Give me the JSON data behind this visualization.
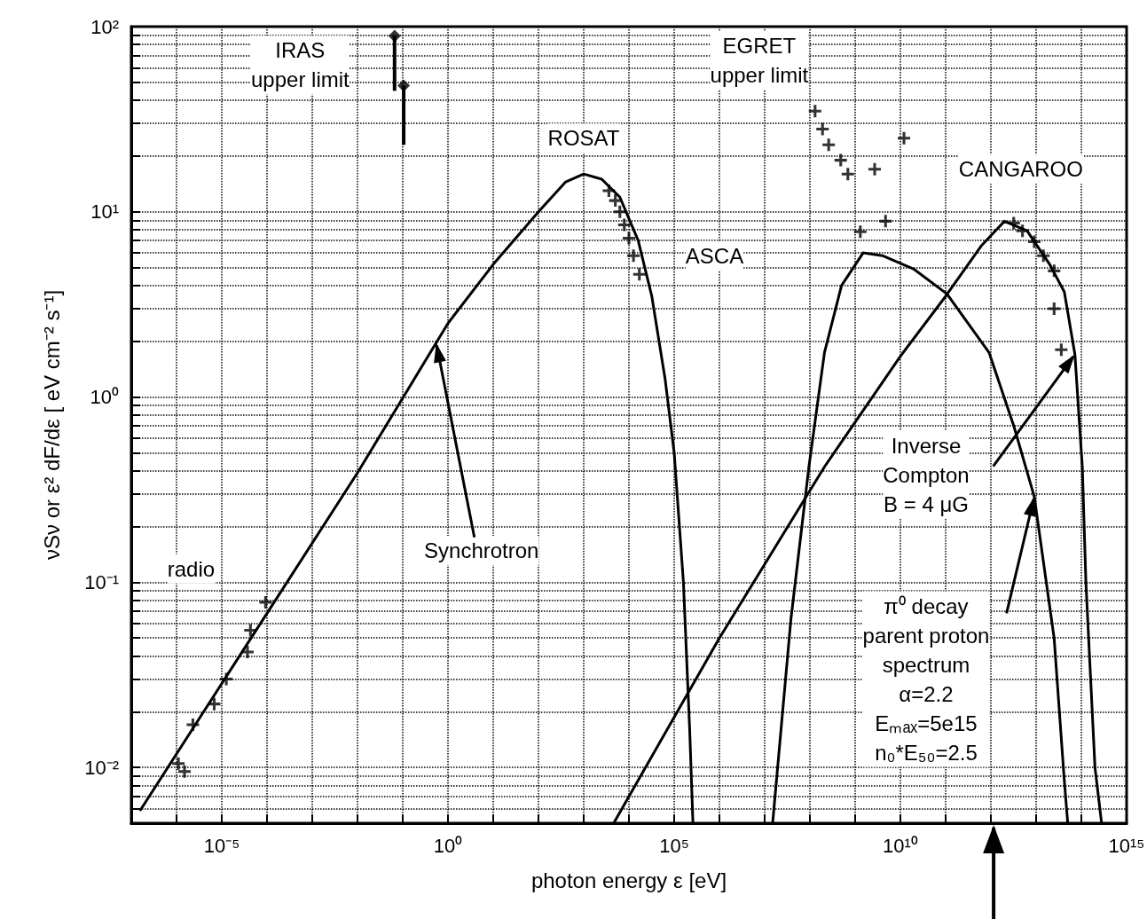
{
  "chart_data": {
    "type": "line",
    "xlabel": "photon energy ε [eV]",
    "ylabel": "νSν or ε² dF/dε [ eV cm⁻² s⁻¹]",
    "log": "xy",
    "grid": true,
    "xlim": [
      1e-07,
      1000000000000000.0
    ],
    "xticks": [
      {
        "value": 1e-07,
        "label": null
      },
      {
        "value": 1e-06,
        "label": null
      },
      {
        "value": 1e-05,
        "label": "10⁻⁵"
      },
      {
        "value": 0.0001,
        "label": null
      },
      {
        "value": 0.001,
        "label": null
      },
      {
        "value": 0.01,
        "label": null
      },
      {
        "value": 0.1,
        "label": null
      },
      {
        "value": 1,
        "label": "10⁰"
      },
      {
        "value": 10,
        "label": null
      },
      {
        "value": 100,
        "label": null
      },
      {
        "value": 1000,
        "label": null
      },
      {
        "value": 10000.0,
        "label": null
      },
      {
        "value": 100000.0,
        "label": "10⁵"
      },
      {
        "value": 1000000.0,
        "label": null
      },
      {
        "value": 10000000.0,
        "label": null
      },
      {
        "value": 100000000.0,
        "label": null
      },
      {
        "value": 1000000000.0,
        "label": null
      },
      {
        "value": 10000000000.0,
        "label": "10¹⁰"
      },
      {
        "value": 100000000000.0,
        "label": null
      },
      {
        "value": 1000000000000.0,
        "label": null
      },
      {
        "value": 10000000000000.0,
        "label": null
      },
      {
        "value": 100000000000000.0,
        "label": null
      },
      {
        "value": 1000000000000000.0,
        "label": "10¹⁵"
      }
    ],
    "ylim": [
      0.005,
      100
    ],
    "yticks": [
      {
        "value": 0.005,
        "label": null
      },
      {
        "value": 0.006,
        "label": null
      },
      {
        "value": 0.007,
        "label": null
      },
      {
        "value": 0.008,
        "label": null
      },
      {
        "value": 0.009,
        "label": null
      },
      {
        "value": 0.01,
        "label": "10⁻²"
      },
      {
        "value": 0.02,
        "label": null
      },
      {
        "value": 0.03,
        "label": null
      },
      {
        "value": 0.04,
        "label": null
      },
      {
        "value": 0.05,
        "label": null
      },
      {
        "value": 0.06,
        "label": null
      },
      {
        "value": 0.07,
        "label": null
      },
      {
        "value": 0.08,
        "label": null
      },
      {
        "value": 0.09,
        "label": null
      },
      {
        "value": 0.1,
        "label": "10⁻¹"
      },
      {
        "value": 0.2,
        "label": null
      },
      {
        "value": 0.3,
        "label": null
      },
      {
        "value": 0.4,
        "label": null
      },
      {
        "value": 0.5,
        "label": null
      },
      {
        "value": 0.6,
        "label": null
      },
      {
        "value": 0.7,
        "label": null
      },
      {
        "value": 0.8,
        "label": null
      },
      {
        "value": 0.9,
        "label": null
      },
      {
        "value": 1,
        "label": "10⁰"
      },
      {
        "value": 2,
        "label": null
      },
      {
        "value": 3,
        "label": null
      },
      {
        "value": 4,
        "label": null
      },
      {
        "value": 5,
        "label": null
      },
      {
        "value": 6,
        "label": null
      },
      {
        "value": 7,
        "label": null
      },
      {
        "value": 8,
        "label": null
      },
      {
        "value": 9,
        "label": null
      },
      {
        "value": 10,
        "label": "10¹"
      },
      {
        "value": 20,
        "label": null
      },
      {
        "value": 30,
        "label": null
      },
      {
        "value": 40,
        "label": null
      },
      {
        "value": 50,
        "label": null
      },
      {
        "value": 60,
        "label": null
      },
      {
        "value": 70,
        "label": null
      },
      {
        "value": 80,
        "label": null
      },
      {
        "value": 90,
        "label": null
      },
      {
        "value": 100,
        "label": "10²"
      }
    ],
    "series": [
      {
        "color": "#000000",
        "line_style": "solid",
        "marker": "none",
        "x": [
          1.6e-07,
          0.0001,
          0.01,
          1,
          10,
          100,
          400,
          1000,
          2500,
          6300,
          16000,
          32000,
          63000,
          100000,
          160000,
          220000,
          260000
        ],
        "values": [
          0.0059,
          0.068,
          0.39,
          2.5,
          5.2,
          10,
          14.5,
          16,
          15,
          12,
          7,
          3.5,
          1.25,
          0.5,
          0.1,
          0.016,
          0.005
        ]
      },
      {
        "color": "#000000",
        "line_style": "solid",
        "marker": "none",
        "x": [
          4600,
          1000000.0,
          210000000.0,
          10000000000.0,
          100000000000.0,
          630000000000.0,
          2000000000000.0,
          6300000000000.0,
          20000000000000.0,
          42000000000000.0,
          72000000000000.0,
          105000000000000.0,
          126000000000000.0,
          200000000000000.0,
          280000000000000.0
        ],
        "values": [
          0.005,
          0.05,
          0.42,
          1.66,
          3.5,
          6.6,
          8.9,
          7.9,
          5.2,
          3.7,
          1.7,
          0.42,
          0.1,
          0.01,
          0.005
        ]
      },
      {
        "color": "#000000",
        "line_style": "solid",
        "marker": "none",
        "x": [
          15000000.0,
          38000000.0,
          95000000.0,
          210000000.0,
          500000000.0,
          1500000000.0,
          4000000000.0,
          20000000000.0,
          107000000000.0,
          910000000000.0,
          3200000000000.0,
          9100000000000.0,
          25000000000000.0,
          42000000000000.0,
          50000000000000.0
        ],
        "values": [
          0.005,
          0.063,
          0.42,
          1.74,
          4,
          6,
          5.8,
          4.9,
          3.6,
          1.74,
          0.7,
          0.29,
          0.05,
          0.0085,
          0.005
        ]
      },
      {
        "type": "scatter",
        "color": "#000000",
        "marker": "cross",
        "x": [
          9.3e-05,
          4.3e-05,
          3.7e-05,
          1.26e-05,
          6.8e-06,
          2.3e-06,
          1.1e-06,
          1.5e-06
        ],
        "values": [
          0.078,
          0.055,
          0.042,
          0.03,
          0.022,
          0.017,
          0.0105,
          0.0095
        ]
      },
      {
        "type": "scatter",
        "color": "#000000",
        "marker": "diamond",
        "x": [
          0.066,
          0.105
        ],
        "values": [
          89,
          48
        ],
        "errors": [
          [
            45,
            89
          ],
          [
            23,
            48
          ]
        ]
      },
      {
        "type": "scatter",
        "color": "#000000",
        "marker": "cross",
        "x": [
          3600,
          5000,
          6300,
          7900,
          10000,
          12600,
          17000
        ],
        "values": [
          13,
          11.5,
          10,
          8.5,
          7.2,
          5.8,
          4.6
        ]
      },
      {
        "type": "scatter",
        "color": "#000000",
        "marker": "cross",
        "x": [
          130000000.0,
          190000000.0,
          260000000.0,
          480000000.0,
          690000000.0,
          2700000000.0,
          12000000000.0,
          1300000000.0,
          4700000000.0
        ],
        "values": [
          35,
          28,
          23,
          19,
          16,
          17,
          25,
          7.8,
          8.9
        ]
      },
      {
        "type": "scatter",
        "color": "#000000",
        "marker": "cross",
        "x": [
          3200000000000.0,
          5000000000000.0,
          9100000000000.0,
          14500000000000.0,
          25000000000000.0,
          25000000000000.0,
          36000000000000.0
        ],
        "values": [
          8.7,
          7.9,
          6.9,
          5.8,
          4.8,
          3,
          1.8
        ]
      }
    ],
    "annotations": [
      "IRAS\nupper limit",
      "EGRET\nupper limit",
      "ROSAT",
      "ASCA",
      "CANGAROO",
      "radio",
      {
        "text": "Synchrotron",
        "x": 0.55,
        "y": 1.96
      },
      {
        "text": "Inverse\nCompton\nB = 4 μG",
        "x": 72000000000000.0,
        "y": 1.7
      },
      {
        "text": "π⁰ decay\nparent proton\nspectrum\nα=2.2\nEₘₐₓ=5e15\nn₀*E₅₀=2.5",
        "x": 9100000000000.0,
        "y": 0.29
      }
    ]
  }
}
